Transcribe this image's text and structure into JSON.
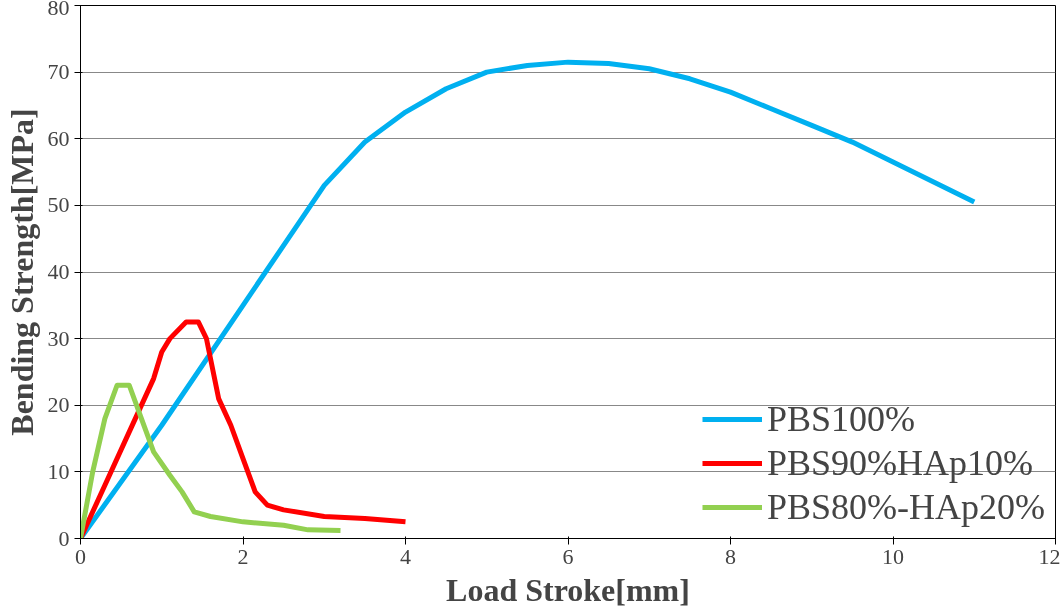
{
  "chart_data": {
    "type": "line",
    "xlabel": "Load Stroke[mm]",
    "ylabel": "Bending Strength[MPa]",
    "xlim": [
      0,
      12
    ],
    "xticks": [
      0,
      2,
      4,
      6,
      8,
      10,
      12
    ],
    "ylim": [
      0,
      80
    ],
    "yticks": [
      0,
      10,
      20,
      30,
      40,
      50,
      60,
      70,
      80
    ],
    "grid": "y",
    "legend": "bottom right",
    "series": [
      {
        "name": "PBS100%",
        "color": "#00b0f0",
        "x": [
          0,
          1,
          2,
          2.5,
          3,
          3.5,
          4,
          4.5,
          5,
          5.5,
          6,
          6.5,
          7,
          7.5,
          8,
          8.5,
          9,
          9.5,
          10,
          10.5,
          11
        ],
        "values": [
          0,
          17,
          35,
          44,
          53,
          59.5,
          64,
          67.5,
          70,
          71,
          71.5,
          71.3,
          70.5,
          69,
          67,
          64.5,
          62,
          59.5,
          56.5,
          53.5,
          50.5
        ]
      },
      {
        "name": "PBS90%HAp10%",
        "color": "#ff0000",
        "x": [
          0,
          0.3,
          0.6,
          0.9,
          1.0,
          1.1,
          1.3,
          1.45,
          1.55,
          1.7,
          1.85,
          2.0,
          2.15,
          2.3,
          2.5,
          3,
          3.5,
          4.0
        ],
        "values": [
          0,
          8,
          16,
          24,
          28,
          30,
          32.5,
          32.5,
          30,
          21,
          17,
          12,
          7,
          5,
          4.3,
          3.3,
          3,
          2.5
        ]
      },
      {
        "name": "PBS80%-HAp20%",
        "color": "#92d050",
        "x": [
          0,
          0.15,
          0.3,
          0.45,
          0.6,
          0.75,
          0.9,
          1.1,
          1.25,
          1.4,
          1.6,
          2,
          2.5,
          2.8,
          3.2
        ],
        "values": [
          0,
          10,
          18,
          23,
          23,
          18,
          13,
          9.5,
          7,
          4,
          3.3,
          2.5,
          2,
          1.3,
          1.2
        ]
      }
    ]
  }
}
